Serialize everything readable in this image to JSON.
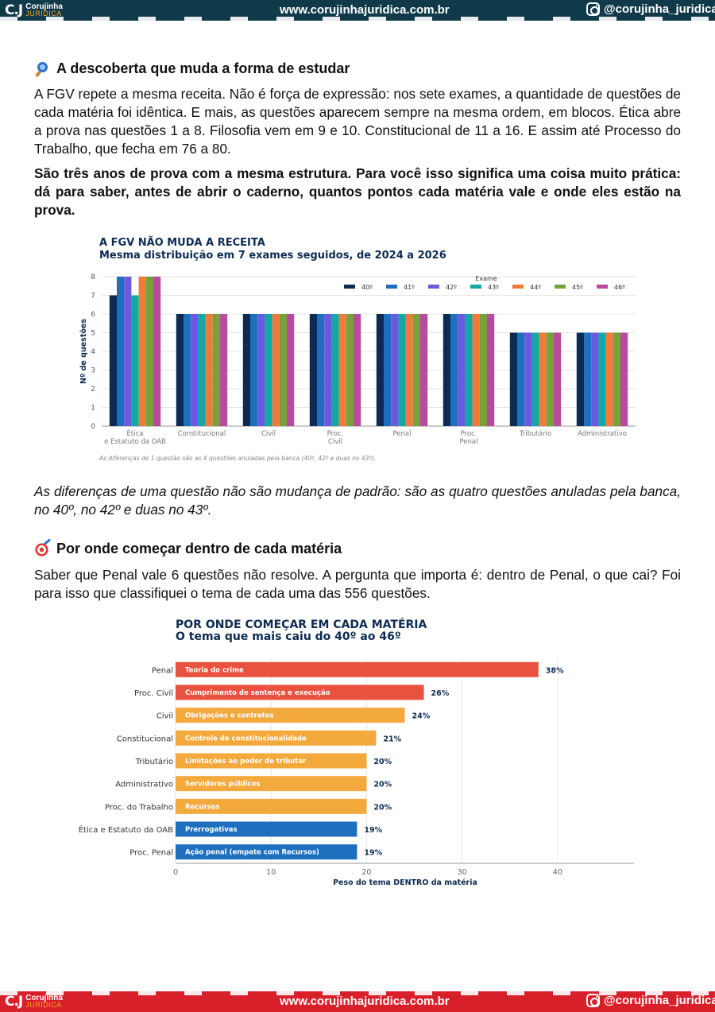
{
  "header": {
    "logo_mark": "C.J",
    "logo_line1": "Corujinha",
    "logo_line2": "JURÍDICA",
    "site": "www.corujinhajuridica.com.br",
    "instagram": "@corujinha_juridica"
  },
  "section1": {
    "icon": "magnifier-icon",
    "title": "A descoberta que muda a forma de estudar",
    "p1": "A FGV repete a mesma receita. Não é força de expressão: nos sete exames, a quantidade de questões de cada matéria foi idêntica. E mais, as questões aparecem sempre na mesma ordem, em blocos. Ética abre a prova nas questões 1 a 8. Filosofia vem em 9 e 10. Constitucional de 11 a 16. E assim até Processo do Trabalho, que fecha em 76 a 80.",
    "p2": "São três anos de prova com a mesma estrutura. Para você isso significa uma coisa muito prática: dá para saber, antes de abrir o caderno, quantos pontos cada matéria vale e onde eles estão na prova.",
    "p3": "As diferenças de uma questão não são mudança de padrão: são as quatro questões anuladas pela banca, no 40º, no 42º e duas no 43º."
  },
  "section2": {
    "icon": "target-icon",
    "title": "Por onde começar dentro de cada matéria",
    "p1": "Saber que Penal vale 6 questões não resolve. A pergunta que importa é: dentro de Penal, o que cai? Foi para isso que classifiquei o tema de cada uma das 556 questões."
  },
  "chart_data": [
    {
      "type": "bar",
      "title": "A FGV NÃO MUDA A RECEITA",
      "subtitle": "Mesma distribuição em 7 exames seguidos, de 2024 a 2026",
      "ylabel": "Nº de questões",
      "xlabel": "",
      "ylim": [
        0,
        8
      ],
      "yticks": [
        "0",
        "1",
        "2",
        "3",
        "4",
        "5",
        "6",
        "7",
        "8"
      ],
      "legend_title": "Exame",
      "legend_position": "top-right",
      "grid": true,
      "categories": [
        "Ética\ne Estatuto da OAB",
        "Constitucional",
        "Civil",
        "Proc.\nCivil",
        "Penal",
        "Proc.\nPenal",
        "Tributário",
        "Administrativo"
      ],
      "series": [
        {
          "name": "40º",
          "color": "#0d2b52",
          "values": [
            7,
            6,
            6,
            6,
            6,
            6,
            5,
            5
          ]
        },
        {
          "name": "41º",
          "color": "#1f6fbf",
          "values": [
            8,
            6,
            6,
            6,
            6,
            6,
            5,
            5
          ]
        },
        {
          "name": "42º",
          "color": "#6a5ae0",
          "values": [
            8,
            6,
            6,
            6,
            6,
            6,
            5,
            5
          ]
        },
        {
          "name": "43º",
          "color": "#13a8a8",
          "values": [
            7,
            6,
            6,
            6,
            6,
            6,
            5,
            5
          ]
        },
        {
          "name": "44º",
          "color": "#ee7a3c",
          "values": [
            8,
            6,
            6,
            6,
            6,
            6,
            5,
            5
          ]
        },
        {
          "name": "45º",
          "color": "#77a23a",
          "values": [
            8,
            6,
            6,
            6,
            6,
            6,
            5,
            5
          ]
        },
        {
          "name": "46º",
          "color": "#b84aa0",
          "values": [
            8,
            6,
            6,
            6,
            6,
            6,
            5,
            5
          ]
        }
      ],
      "footnote": "As diferenças de 1 questão são as 4 questões anuladas pela banca (40º, 42º e duas no 43º)."
    },
    {
      "type": "bar",
      "orientation": "horizontal",
      "title": "POR ONDE COMEÇAR EM CADA MATÉRIA",
      "subtitle": "O tema que mais caiu do 40º ao 46º",
      "xlabel": "Peso do tema DENTRO da matéria",
      "ylabel": "",
      "xlim": [
        0,
        48
      ],
      "xticks": [
        "0",
        "10",
        "20",
        "30",
        "40"
      ],
      "grid": true,
      "categories": [
        "Penal",
        "Proc. Civil",
        "Civil",
        "Constitucional",
        "Tributário",
        "Administrativo",
        "Proc. do Trabalho",
        "Ética e Estatuto da OAB",
        "Proc. Penal"
      ],
      "values": [
        38,
        26,
        24,
        21,
        20,
        20,
        20,
        19,
        19
      ],
      "value_labels": [
        "38%",
        "26%",
        "24%",
        "21%",
        "20%",
        "20%",
        "20%",
        "19%",
        "19%"
      ],
      "bar_labels": [
        "Teoria do crime",
        "Cumprimento de sentença e execução",
        "Obrigações e contratos",
        "Controle de constitucionalidade",
        "Limitações ao poder de tributar",
        "Servidores públicos",
        "Recursos",
        "Prerrogativas",
        "Ação penal  (empate com Recursos)"
      ],
      "colors": [
        "#e8523e",
        "#e8523e",
        "#f3a93c",
        "#f3a93c",
        "#f3a93c",
        "#f3a93c",
        "#f3a93c",
        "#1f6fbf",
        "#1f6fbf"
      ]
    }
  ]
}
